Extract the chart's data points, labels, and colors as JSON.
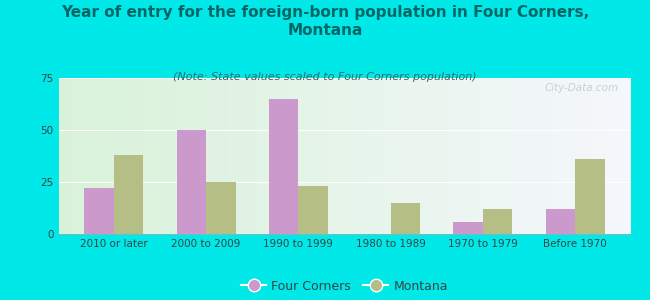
{
  "title": "Year of entry for the foreign-born population in Four Corners,\nMontana",
  "subtitle": "(Note: State values scaled to Four Corners population)",
  "categories": [
    "2010 or later",
    "2000 to 2009",
    "1990 to 1999",
    "1980 to 1989",
    "1970 to 1979",
    "Before 1970"
  ],
  "four_corners": [
    22,
    50,
    65,
    0,
    6,
    12
  ],
  "montana": [
    38,
    25,
    23,
    15,
    12,
    36
  ],
  "four_corners_color": "#cc99cc",
  "montana_color": "#b5bf85",
  "background_outer": "#00e8e8",
  "ylim": [
    0,
    75
  ],
  "yticks": [
    0,
    25,
    50,
    75
  ],
  "title_fontsize": 11,
  "subtitle_fontsize": 8,
  "tick_fontsize": 7.5,
  "legend_fontsize": 9,
  "title_color": "#006666",
  "subtitle_color": "#336666",
  "watermark": "City-Data.com"
}
